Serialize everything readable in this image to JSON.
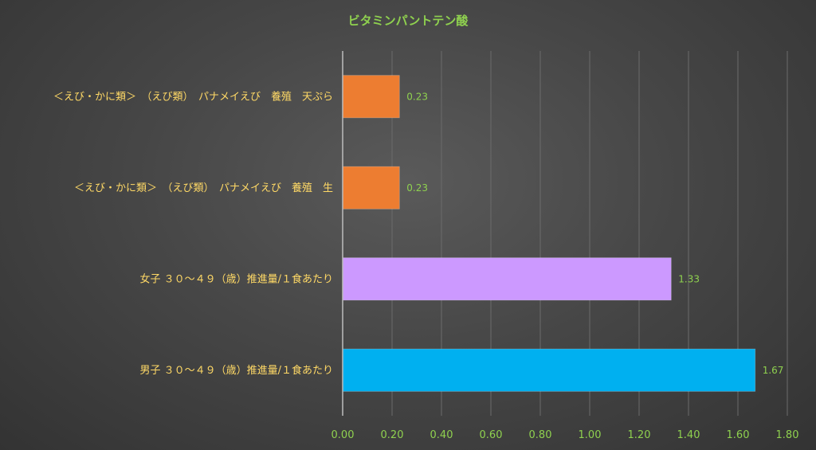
{
  "chart_data": {
    "type": "bar",
    "orientation": "horizontal",
    "title": "ビタミンパントテン酸",
    "categories": [
      "＜えび・かに類＞　（えび類）　パナメイえび　養殖　天ぷら",
      "＜えび・かに類＞　（えび類）　パナメイえび　養殖　生",
      "女子 ３０～４９（歳）推進量/１食あたり",
      "男子 ３０～４９（歳）推進量/１食あたり"
    ],
    "values": [
      0.23,
      0.23,
      1.33,
      1.67
    ],
    "value_labels": [
      "0.23",
      "0.23",
      "1.33",
      "1.67"
    ],
    "colors": [
      "#ed7d31",
      "#ed7d31",
      "#cc99ff",
      "#00b0f0"
    ],
    "xlim": [
      0,
      1.8
    ],
    "xticks": [
      "0.00",
      "0.20",
      "0.40",
      "0.60",
      "0.80",
      "1.00",
      "1.20",
      "1.40",
      "1.60",
      "1.80"
    ],
    "xlabel": "",
    "ylabel": "",
    "grid": "vertical",
    "legend": "none"
  }
}
